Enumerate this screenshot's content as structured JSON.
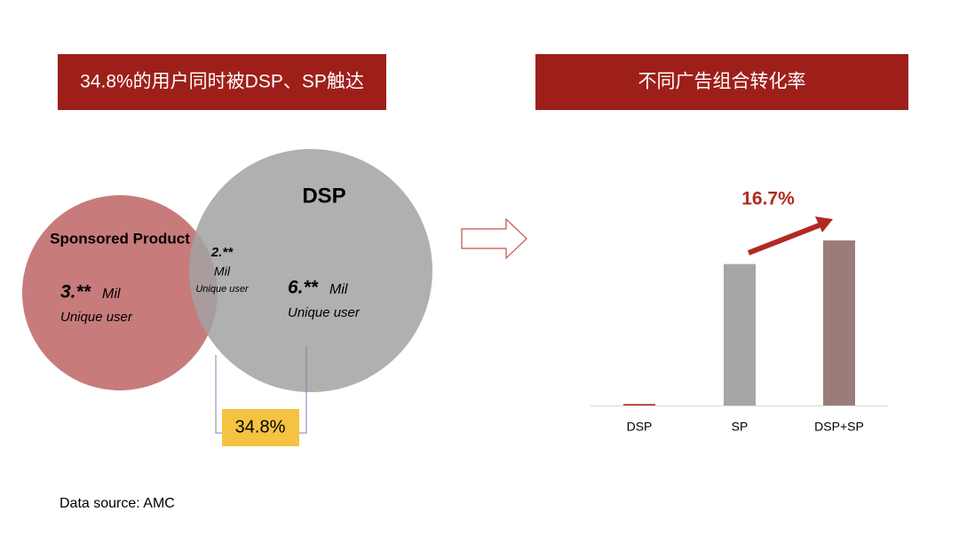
{
  "headers": [
    "34.8%的用户同时被DSP、SP触达",
    "不同广告组合转化率"
  ],
  "venn": {
    "left": {
      "label": "Sponsored Product",
      "number": "3.**",
      "unit": "Mil",
      "caption": "Unique user"
    },
    "overlap": {
      "number": "2.**",
      "unit": "Mil",
      "caption": "Unique user"
    },
    "right": {
      "label": "DSP",
      "number": "6.**",
      "unit": "Mil",
      "caption": "Unique user"
    },
    "share": "34.8%"
  },
  "chart_data": {
    "type": "bar",
    "categories": [
      "DSP",
      "SP",
      "DSP+SP"
    ],
    "values": [
      1,
      100,
      116.7
    ],
    "colors": [
      "#b02a22",
      "#a6a6a6",
      "#9b7c79"
    ],
    "annotation": "16.7%"
  },
  "source": "Data source: AMC"
}
